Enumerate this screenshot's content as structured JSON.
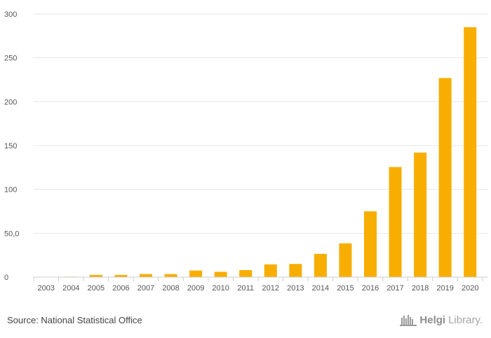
{
  "chart_data": {
    "type": "bar",
    "title": "",
    "xlabel": "",
    "ylabel": "",
    "categories": [
      "2003",
      "2004",
      "2005",
      "2006",
      "2007",
      "2008",
      "2009",
      "2010",
      "2011",
      "2012",
      "2013",
      "2014",
      "2015",
      "2016",
      "2017",
      "2018",
      "2019",
      "2020"
    ],
    "values": [
      0.3,
      0.5,
      2.5,
      2.5,
      3.5,
      3.5,
      7.5,
      6,
      8,
      14.5,
      15,
      26.5,
      38.5,
      75,
      125.5,
      142,
      227,
      285
    ],
    "ylim": [
      0,
      300
    ],
    "yticks": [
      0,
      50,
      100,
      150,
      200,
      250,
      300
    ],
    "ytick_labels": [
      "0",
      "50,0",
      "100",
      "150",
      "200",
      "250",
      "300"
    ],
    "grid": true,
    "bar_color": "#f7ae00"
  },
  "footer": {
    "source": "Source: National Statistical Office",
    "brand_bold": "Helgi",
    "brand_light": "Library."
  }
}
